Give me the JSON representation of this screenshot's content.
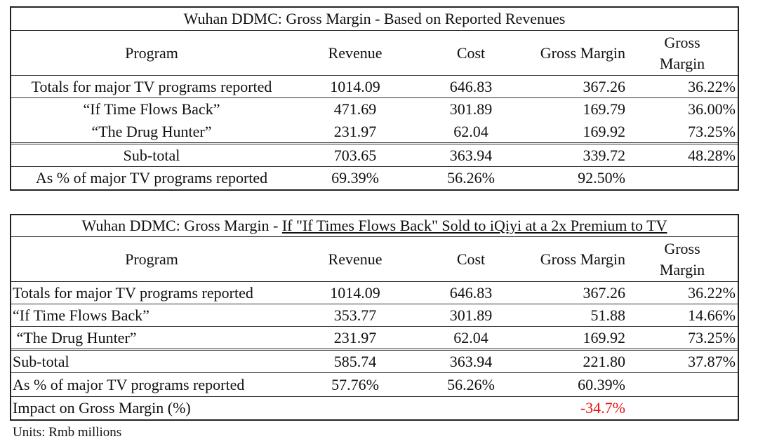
{
  "table1": {
    "title": "Wuhan DDMC: Gross Margin - Based on Reported Revenues",
    "headers": {
      "program": "Program",
      "revenue": "Revenue",
      "cost": "Cost",
      "gross_margin": "Gross Margin",
      "gross_margin_pct_line1": "Gross",
      "gross_margin_pct_line2": "Margin"
    },
    "rows": [
      {
        "program": "Totals for major TV programs reported",
        "revenue": "1014.09",
        "cost": "646.83",
        "gross_margin": "367.26",
        "gm_pct": "36.22%"
      },
      {
        "program": "“If Time Flows Back”",
        "revenue": "471.69",
        "cost": "301.89",
        "gross_margin": "169.79",
        "gm_pct": "36.00%"
      },
      {
        "program": "“The Drug Hunter”",
        "revenue": "231.97",
        "cost": "62.04",
        "gross_margin": "169.92",
        "gm_pct": "73.25%"
      },
      {
        "program": "Sub-total",
        "revenue": "703.65",
        "cost": "363.94",
        "gross_margin": "339.72",
        "gm_pct": "48.28%"
      },
      {
        "program": "As % of major TV programs reported",
        "revenue": "69.39%",
        "cost": "56.26%",
        "gross_margin": "92.50%",
        "gm_pct": ""
      }
    ]
  },
  "table2": {
    "title_prefix": "Wuhan DDMC: Gross Margin - ",
    "title_underlined": "If  \"If Times Flows Back\" Sold to iQiyi at a 2x Premium to TV",
    "headers": {
      "program": "Program",
      "revenue": "Revenue",
      "cost": "Cost",
      "gross_margin": "Gross Margin",
      "gross_margin_pct_line1": "Gross",
      "gross_margin_pct_line2": "Margin"
    },
    "rows": [
      {
        "program": "Totals for major TV programs reported",
        "revenue": "1014.09",
        "cost": "646.83",
        "gross_margin": "367.26",
        "gm_pct": "36.22%"
      },
      {
        "program": "“If Time Flows Back”",
        "revenue": "353.77",
        "cost": "301.89",
        "gross_margin": "51.88",
        "gm_pct": "14.66%"
      },
      {
        "program": " “The Drug Hunter”",
        "revenue": "231.97",
        "cost": "62.04",
        "gross_margin": "169.92",
        "gm_pct": "73.25%"
      },
      {
        "program": "Sub-total",
        "revenue": "585.74",
        "cost": "363.94",
        "gross_margin": "221.80",
        "gm_pct": "37.87%"
      },
      {
        "program": "As % of major TV programs reported",
        "revenue": "57.76%",
        "cost": "56.26%",
        "gross_margin": "60.39%",
        "gm_pct": ""
      },
      {
        "program": "Impact on Gross Margin (%)",
        "revenue": "",
        "cost": "",
        "gross_margin": "-34.7%",
        "gm_pct": ""
      }
    ],
    "negative_color": "#ee1111"
  },
  "units_note": "Units:  Rmb millions"
}
